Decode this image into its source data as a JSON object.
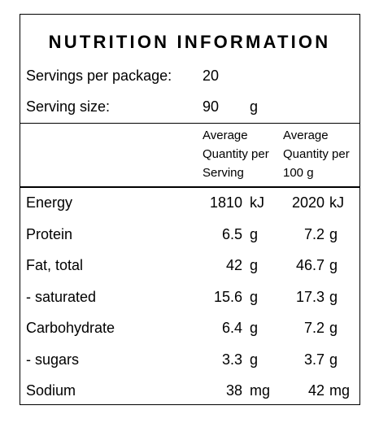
{
  "title": "NUTRITION INFORMATION",
  "servings_per_package": {
    "label": "Servings per package:",
    "value": "20"
  },
  "serving_size": {
    "label": "Serving size:",
    "value": "90",
    "unit": "g"
  },
  "column_headers": {
    "per_serving": [
      "Average",
      "Quantity per",
      "Serving"
    ],
    "per_100g": [
      "Average",
      "Quantity per",
      "100 g"
    ]
  },
  "rows": [
    {
      "name": "Energy",
      "serving": "1810",
      "serving_unit": "kJ",
      "per100": "2020",
      "per100_unit": "kJ"
    },
    {
      "name": "Protein",
      "serving": "6.5",
      "serving_unit": "g",
      "per100": "7.2",
      "per100_unit": "g"
    },
    {
      "name": "Fat, total",
      "serving": "42",
      "serving_unit": "g",
      "per100": "46.7",
      "per100_unit": "g"
    },
    {
      "name": "- saturated",
      "serving": "15.6",
      "serving_unit": "g",
      "per100": "17.3",
      "per100_unit": "g"
    },
    {
      "name": "Carbohydrate",
      "serving": "6.4",
      "serving_unit": "g",
      "per100": "7.2",
      "per100_unit": "g"
    },
    {
      "name": "- sugars",
      "serving": "3.3",
      "serving_unit": "g",
      "per100": "3.7",
      "per100_unit": "g"
    },
    {
      "name": "Sodium",
      "serving": "38",
      "serving_unit": "mg",
      "per100": "42",
      "per100_unit": "mg"
    }
  ]
}
